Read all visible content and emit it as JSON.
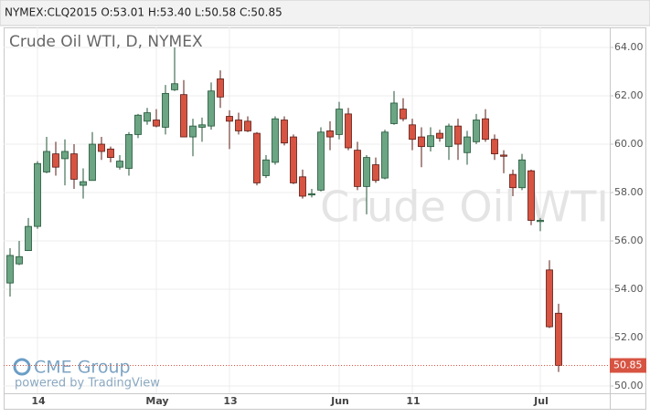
{
  "header": "NYMEX:CLQ2015 O:53.01 H:53.40 L:50.58 C:50.85",
  "chart_data": {
    "type": "candlestick",
    "title": "Crude Oil WTI, D, NYMEX",
    "watermark": "Crude Oil WTI",
    "logo": "CME Group",
    "powered_by": "powered by TradingView",
    "categories": [
      null,
      null,
      null,
      "14",
      null,
      null,
      null,
      null,
      null,
      null,
      null,
      null,
      null,
      null,
      null,
      null,
      "May",
      null,
      null,
      null,
      null,
      null,
      null,
      null,
      "13",
      null,
      null,
      null,
      null,
      null,
      null,
      null,
      null,
      null,
      null,
      null,
      "Jun",
      null,
      null,
      null,
      null,
      null,
      null,
      null,
      "11",
      null,
      null,
      null,
      null,
      null,
      null,
      null,
      null,
      null,
      null,
      null,
      null,
      null,
      "Jul",
      null,
      null
    ],
    "open": [
      54.26,
      55.05,
      55.6,
      56.6,
      58.85,
      59.6,
      59.4,
      59.6,
      58.3,
      58.5,
      60.0,
      59.8,
      59.05,
      59.0,
      60.4,
      60.95,
      61.0,
      60.7,
      62.25,
      62.05,
      60.3,
      60.7,
      60.75,
      62.7,
      61.15,
      61.0,
      60.95,
      60.45,
      58.7,
      59.25,
      61.0,
      60.3,
      58.65,
      57.9,
      58.1,
      60.55,
      60.4,
      61.25,
      59.75,
      58.25,
      59.15,
      58.6,
      60.85,
      61.45,
      60.8,
      60.3,
      59.9,
      60.45,
      59.9,
      60.75,
      59.65,
      60.1,
      61.05,
      60.2,
      59.55,
      58.75,
      58.2,
      58.9,
      56.8,
      54.8,
      53.01
    ],
    "high": [
      55.7,
      56.0,
      56.95,
      59.3,
      60.3,
      60.1,
      60.2,
      60.0,
      59.0,
      60.5,
      60.3,
      59.9,
      59.55,
      60.5,
      61.25,
      61.5,
      61.45,
      62.45,
      64.0,
      62.65,
      61.05,
      61.1,
      62.55,
      63.05,
      61.4,
      61.3,
      61.15,
      60.5,
      59.55,
      61.15,
      61.15,
      60.4,
      58.95,
      58.15,
      60.7,
      60.95,
      61.75,
      61.5,
      60.1,
      59.55,
      59.45,
      60.6,
      62.2,
      61.9,
      61.05,
      60.7,
      60.7,
      60.6,
      60.85,
      61.05,
      60.55,
      61.25,
      61.45,
      60.4,
      59.75,
      58.95,
      59.6,
      58.95,
      56.95,
      55.2,
      53.4
    ],
    "low": [
      53.7,
      55.0,
      55.6,
      56.5,
      58.8,
      58.7,
      58.3,
      58.15,
      57.75,
      58.5,
      59.35,
      59.25,
      58.95,
      58.7,
      60.25,
      60.8,
      60.7,
      60.4,
      62.2,
      60.3,
      59.5,
      60.1,
      60.6,
      61.5,
      59.8,
      60.4,
      60.5,
      58.3,
      58.6,
      59.15,
      59.95,
      58.35,
      57.75,
      57.8,
      58.05,
      59.75,
      60.2,
      59.75,
      58.1,
      57.1,
      58.4,
      58.55,
      60.8,
      60.95,
      59.75,
      59.05,
      59.7,
      60.1,
      59.35,
      59.35,
      59.15,
      60.0,
      60.1,
      59.35,
      58.8,
      57.85,
      58.1,
      56.65,
      56.4,
      52.4,
      50.58
    ],
    "close": [
      55.4,
      55.35,
      56.6,
      59.2,
      59.7,
      59.05,
      59.7,
      58.55,
      58.45,
      60.0,
      59.7,
      59.45,
      59.3,
      60.4,
      61.2,
      61.3,
      60.75,
      62.1,
      62.5,
      60.3,
      60.75,
      60.8,
      62.2,
      61.95,
      60.95,
      60.55,
      60.55,
      58.4,
      59.35,
      61.05,
      60.05,
      58.4,
      57.85,
      57.95,
      60.5,
      60.3,
      61.45,
      59.85,
      58.25,
      59.45,
      58.5,
      60.5,
      61.7,
      61.05,
      60.2,
      59.9,
      60.35,
      60.25,
      60.75,
      60.0,
      60.3,
      61.0,
      60.2,
      59.6,
      59.5,
      58.2,
      59.35,
      56.85,
      56.85,
      52.45,
      50.85
    ],
    "last_price": 50.85,
    "up_color": "#6ba583",
    "down_color": "#d75442",
    "ylim": [
      49.7,
      64.83
    ],
    "yticks": [
      {
        "value": 50,
        "label": "50.00"
      },
      {
        "value": 52,
        "label": "52.00"
      },
      {
        "value": 54,
        "label": "54.00"
      },
      {
        "value": 56,
        "label": "56.00"
      },
      {
        "value": 58,
        "label": "58.00"
      },
      {
        "value": 60,
        "label": "60.00"
      },
      {
        "value": 62,
        "label": "62.00"
      },
      {
        "value": 64,
        "label": "64.00"
      }
    ],
    "grid": true
  }
}
